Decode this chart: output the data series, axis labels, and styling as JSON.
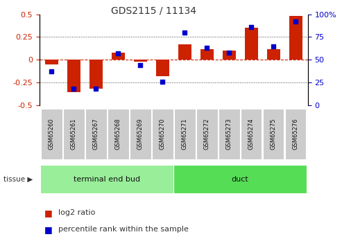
{
  "title": "GDS2115 / 11134",
  "samples": [
    "GSM65260",
    "GSM65261",
    "GSM65267",
    "GSM65268",
    "GSM65269",
    "GSM65270",
    "GSM65271",
    "GSM65272",
    "GSM65273",
    "GSM65274",
    "GSM65275",
    "GSM65276"
  ],
  "log2_ratio": [
    -0.05,
    -0.36,
    -0.32,
    0.08,
    -0.02,
    -0.18,
    0.17,
    0.12,
    0.1,
    0.35,
    0.12,
    0.48
  ],
  "percentile_rank": [
    37,
    18,
    18,
    57,
    44,
    26,
    80,
    63,
    58,
    86,
    65,
    92
  ],
  "tissue_groups": [
    {
      "label": "terminal end bud",
      "start": 0,
      "end": 6,
      "color": "#99ee99"
    },
    {
      "label": "duct",
      "start": 6,
      "end": 12,
      "color": "#55dd55"
    }
  ],
  "bar_color": "#cc2200",
  "dot_color": "#0000cc",
  "ylim_left": [
    -0.5,
    0.5
  ],
  "ylim_right": [
    0,
    100
  ],
  "yticks_left": [
    -0.5,
    -0.25,
    0.0,
    0.25,
    0.5
  ],
  "yticks_right": [
    0,
    25,
    50,
    75,
    100
  ],
  "dotted_lines": [
    -0.25,
    0.25
  ],
  "zero_line_color": "#cc2200",
  "bg_color": "#ffffff",
  "bar_width": 0.6,
  "dot_size": 15,
  "sample_box_color": "#cccccc",
  "title_fontsize": 10,
  "axis_fontsize": 8,
  "legend_fontsize": 8,
  "tissue_label_fontsize": 8,
  "sample_fontsize": 6
}
